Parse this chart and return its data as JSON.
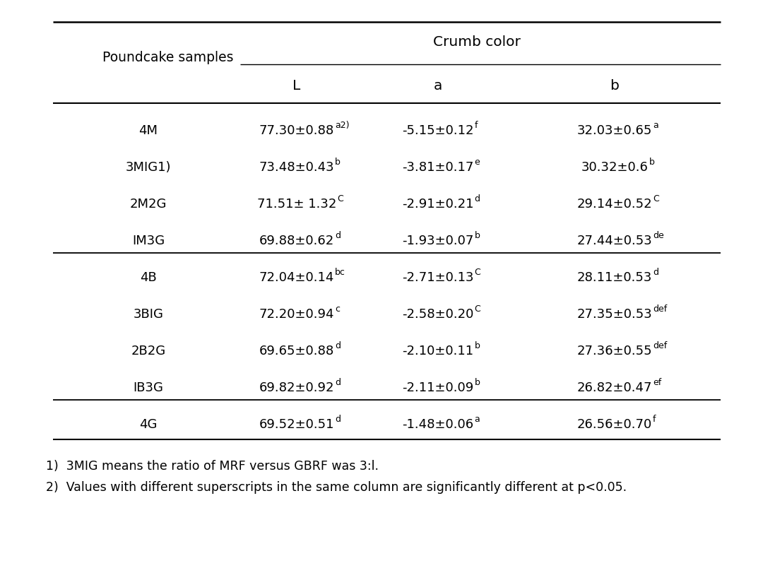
{
  "title": "Crumb color",
  "col_header_left": "Poundcake samples",
  "col_headers": [
    "L",
    "a",
    "b"
  ],
  "rows": [
    {
      "sample": "4M",
      "L": "77.30±0.88",
      "L_sup": "a2)",
      "a": "-5.15±0.12",
      "a_sup": "f",
      "b": "32.03±0.65",
      "b_sup": "a",
      "group": 0
    },
    {
      "sample": "3MIG1)",
      "L": "73.48±0.43",
      "L_sup": "b",
      "a": "-3.81±0.17",
      "a_sup": "e",
      "b": "30.32±0.6",
      "b_sup": "b",
      "group": 0
    },
    {
      "sample": "2M2G",
      "L": "71.51± 1.32",
      "L_sup": "C",
      "a": "-2.91±0.21",
      "a_sup": "d",
      "b": "29.14±0.52",
      "b_sup": "C",
      "group": 0
    },
    {
      "sample": "IM3G",
      "L": "69.88±0.62",
      "L_sup": "d",
      "a": "-1.93±0.07",
      "a_sup": "b",
      "b": "27.44±0.53",
      "b_sup": "de",
      "group": 0
    },
    {
      "sample": "4B",
      "L": "72.04±0.14",
      "L_sup": "bc",
      "a": "-2.71±0.13",
      "a_sup": "C",
      "b": "28.11±0.53",
      "b_sup": "d",
      "group": 1
    },
    {
      "sample": "3BIG",
      "L": "72.20±0.94",
      "L_sup": "c",
      "a": "-2.58±0.20",
      "a_sup": "C",
      "b": "27.35±0.53",
      "b_sup": "def",
      "group": 1
    },
    {
      "sample": "2B2G",
      "L": "69.65±0.88",
      "L_sup": "d",
      "a": "-2.10±0.11",
      "a_sup": "b",
      "b": "27.36±0.55",
      "b_sup": "def",
      "group": 1
    },
    {
      "sample": "IB3G",
      "L": "69.82±0.92",
      "L_sup": "d",
      "a": "-2.11±0.09",
      "a_sup": "b",
      "b": "26.82±0.47",
      "b_sup": "ef",
      "group": 1
    },
    {
      "sample": "4G",
      "L": "69.52±0.51",
      "L_sup": "d",
      "a": "-1.48±0.06",
      "a_sup": "a",
      "b": "26.56±0.70",
      "b_sup": "f",
      "group": 2
    }
  ],
  "footnotes": [
    "1)  3MIG means the ratio of MRF versus GBRF was 3:l.",
    "2)  Values with different superscripts in the same column are significantly different at p<0.05."
  ],
  "bg_color": "#ffffff",
  "text_color": "#000000",
  "font_size": 13.0,
  "sup_font_size": 9.0,
  "footnote_font_size": 12.5,
  "header_font_size": 13.5
}
